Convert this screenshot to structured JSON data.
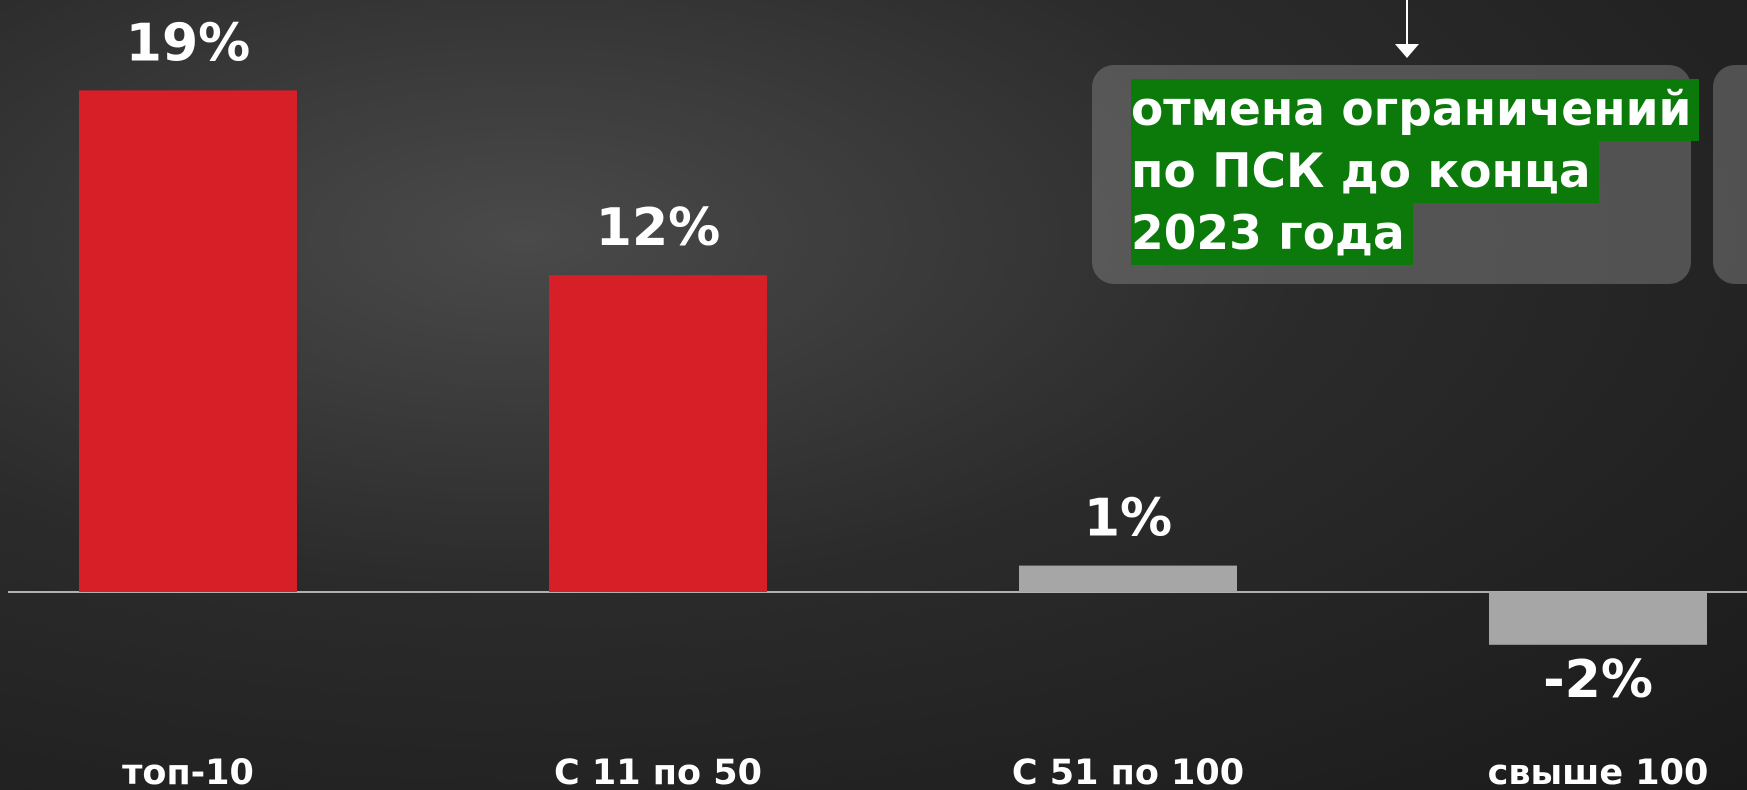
{
  "chart_data": {
    "type": "bar",
    "categories": [
      "топ-10",
      "С 11 по 50",
      "С 51 по 100",
      "свыше 100"
    ],
    "values": [
      19,
      12,
      1,
      -2
    ],
    "value_labels": [
      "19%",
      "12%",
      "1%",
      "-2%"
    ],
    "colors": [
      "#d71f27",
      "#d71f27",
      "#a6a6a6",
      "#a6a6a6"
    ],
    "annotation": [
      "отмена ограничений",
      "по ПСК до конца",
      "2023 года"
    ]
  }
}
